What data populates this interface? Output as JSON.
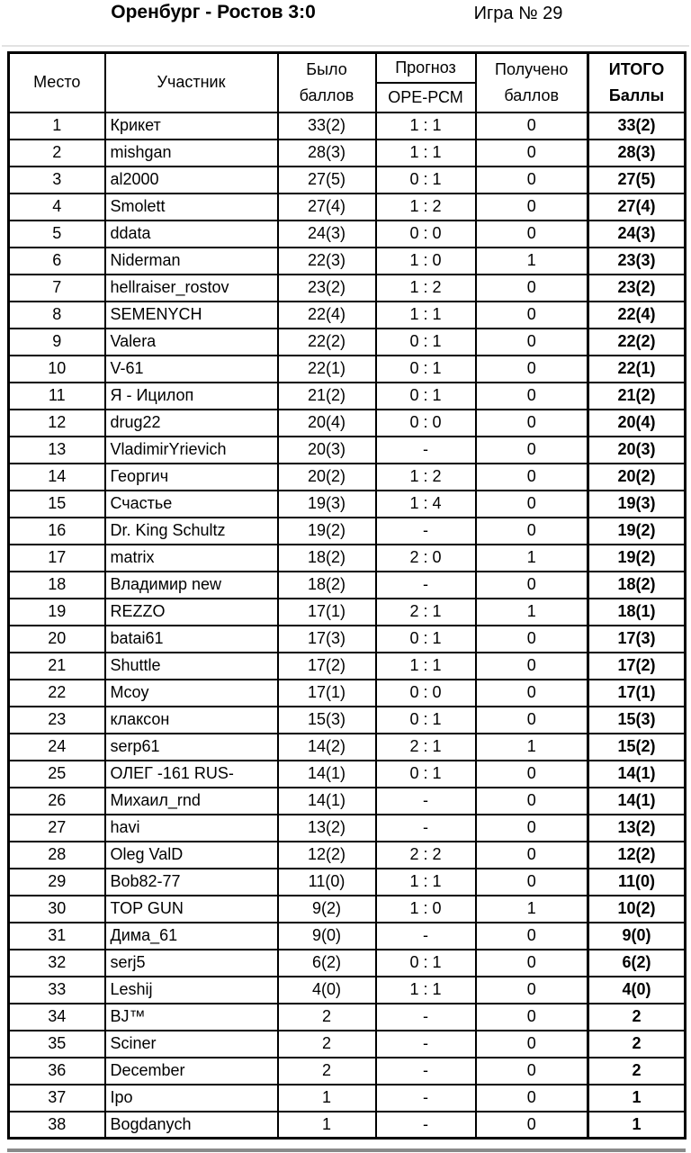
{
  "header": {
    "match_title": "Оренбург - Ростов 3:0",
    "game_number": "Игра № 29"
  },
  "table": {
    "columns": {
      "place": "Место",
      "participant": "Участник",
      "was_line1": "Было",
      "was_line2": "баллов",
      "forecast_line1": "Прогноз",
      "forecast_line2": "ОРЕ-РСМ",
      "received_line1": "Получено",
      "received_line2": "баллов",
      "total_line1": "ИТОГО",
      "total_line2": "Баллы"
    },
    "rows": [
      {
        "place": "1",
        "participant": "Крикет",
        "was": "33(2)",
        "forecast": "1 : 1",
        "received": "0",
        "total": "33(2)"
      },
      {
        "place": "2",
        "participant": "mishgan",
        "was": "28(3)",
        "forecast": "1 : 1",
        "received": "0",
        "total": "28(3)"
      },
      {
        "place": "3",
        "participant": "al2000",
        "was": "27(5)",
        "forecast": "0 : 1",
        "received": "0",
        "total": "27(5)"
      },
      {
        "place": "4",
        "participant": "Smolett",
        "was": "27(4)",
        "forecast": "1 : 2",
        "received": "0",
        "total": "27(4)"
      },
      {
        "place": "5",
        "participant": "ddata",
        "was": "24(3)",
        "forecast": "0 : 0",
        "received": "0",
        "total": "24(3)"
      },
      {
        "place": "6",
        "participant": "Niderman",
        "was": "22(3)",
        "forecast": "1 : 0",
        "received": "1",
        "total": "23(3)"
      },
      {
        "place": "7",
        "participant": "hellraiser_rostov",
        "was": "23(2)",
        "forecast": "1 : 2",
        "received": "0",
        "total": "23(2)"
      },
      {
        "place": "8",
        "participant": "SEMENYCH",
        "was": "22(4)",
        "forecast": "1 : 1",
        "received": "0",
        "total": "22(4)"
      },
      {
        "place": "9",
        "participant": "Valera",
        "was": "22(2)",
        "forecast": "0 : 1",
        "received": "0",
        "total": "22(2)"
      },
      {
        "place": "10",
        "participant": "V-61",
        "was": "22(1)",
        "forecast": "0 : 1",
        "received": "0",
        "total": "22(1)"
      },
      {
        "place": "11",
        "participant": "Я - Ицилоп",
        "was": "21(2)",
        "forecast": "0 : 1",
        "received": "0",
        "total": "21(2)"
      },
      {
        "place": "12",
        "participant": "drug22",
        "was": "20(4)",
        "forecast": "0 : 0",
        "received": "0",
        "total": "20(4)"
      },
      {
        "place": "13",
        "participant": "VladimirYrievich",
        "was": "20(3)",
        "forecast": "-",
        "received": "0",
        "total": "20(3)"
      },
      {
        "place": "14",
        "participant": "Георгич",
        "was": "20(2)",
        "forecast": "1 : 2",
        "received": "0",
        "total": "20(2)"
      },
      {
        "place": "15",
        "participant": "Счастье",
        "was": "19(3)",
        "forecast": "1 : 4",
        "received": "0",
        "total": "19(3)"
      },
      {
        "place": "16",
        "participant": "Dr. King Schultz",
        "was": "19(2)",
        "forecast": "-",
        "received": "0",
        "total": "19(2)"
      },
      {
        "place": "17",
        "participant": "matrix",
        "was": "18(2)",
        "forecast": "2 : 0",
        "received": "1",
        "total": "19(2)"
      },
      {
        "place": "18",
        "participant": "Владимир new",
        "was": "18(2)",
        "forecast": "-",
        "received": "0",
        "total": "18(2)"
      },
      {
        "place": "19",
        "participant": "REZZO",
        "was": "17(1)",
        "forecast": "2 : 1",
        "received": "1",
        "total": "18(1)"
      },
      {
        "place": "20",
        "participant": "batai61",
        "was": "17(3)",
        "forecast": "0 : 1",
        "received": "0",
        "total": "17(3)"
      },
      {
        "place": "21",
        "participant": "Shuttle",
        "was": "17(2)",
        "forecast": "1 : 1",
        "received": "0",
        "total": "17(2)"
      },
      {
        "place": "22",
        "participant": "Mcoy",
        "was": "17(1)",
        "forecast": "0 : 0",
        "received": "0",
        "total": "17(1)"
      },
      {
        "place": "23",
        "participant": "клаксон",
        "was": "15(3)",
        "forecast": "0 : 1",
        "received": "0",
        "total": "15(3)"
      },
      {
        "place": "24",
        "participant": "serp61",
        "was": "14(2)",
        "forecast": "2 : 1",
        "received": "1",
        "total": "15(2)"
      },
      {
        "place": "25",
        "participant": "ОЛЕГ -161 RUS-",
        "was": "14(1)",
        "forecast": "0 : 1",
        "received": "0",
        "total": "14(1)"
      },
      {
        "place": "26",
        "participant": "Михаил_rnd",
        "was": "14(1)",
        "forecast": "-",
        "received": "0",
        "total": "14(1)"
      },
      {
        "place": "27",
        "participant": "havi",
        "was": "13(2)",
        "forecast": "-",
        "received": "0",
        "total": "13(2)"
      },
      {
        "place": "28",
        "participant": "Oleg ValD",
        "was": "12(2)",
        "forecast": "2 : 2",
        "received": "0",
        "total": "12(2)"
      },
      {
        "place": "29",
        "participant": "Bob82-77",
        "was": "11(0)",
        "forecast": "1 : 1",
        "received": "0",
        "total": "11(0)"
      },
      {
        "place": "30",
        "participant": "TOP GUN",
        "was": "9(2)",
        "forecast": "1 : 0",
        "received": "1",
        "total": "10(2)"
      },
      {
        "place": "31",
        "participant": "Дима_61",
        "was": "9(0)",
        "forecast": "-",
        "received": "0",
        "total": "9(0)"
      },
      {
        "place": "32",
        "participant": "serj5",
        "was": "6(2)",
        "forecast": "0 : 1",
        "received": "0",
        "total": "6(2)"
      },
      {
        "place": "33",
        "participant": "Leshij",
        "was": "4(0)",
        "forecast": "1 : 1",
        "received": "0",
        "total": "4(0)"
      },
      {
        "place": "34",
        "participant": "BJ™",
        "was": "2",
        "forecast": "-",
        "received": "0",
        "total": "2"
      },
      {
        "place": "35",
        "participant": "Sciner",
        "was": "2",
        "forecast": "-",
        "received": "0",
        "total": "2"
      },
      {
        "place": "36",
        "participant": "December",
        "was": "2",
        "forecast": "-",
        "received": "0",
        "total": "2"
      },
      {
        "place": "37",
        "participant": "Ipo",
        "was": "1",
        "forecast": "-",
        "received": "0",
        "total": "1"
      },
      {
        "place": "38",
        "participant": "Bogdanych",
        "was": "1",
        "forecast": "-",
        "received": "0",
        "total": "1"
      }
    ]
  }
}
